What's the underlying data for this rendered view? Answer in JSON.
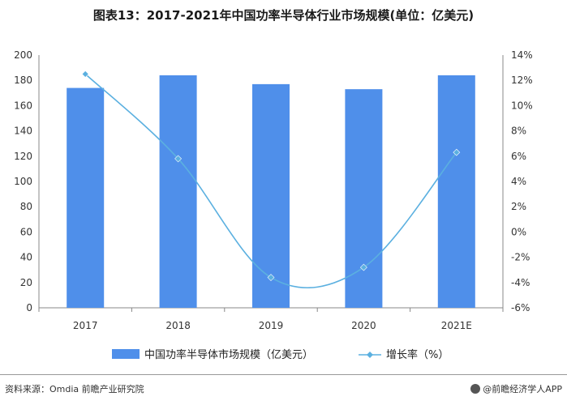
{
  "title": "图表13：2017-2021年中国功率半导体行业市场规模(单位：亿美元)",
  "chart_data": {
    "type": "bar+line",
    "categories": [
      "2017",
      "2018",
      "2019",
      "2020",
      "2021E"
    ],
    "series": [
      {
        "name": "中国功率半导体市场规模（亿美元）",
        "type": "bar",
        "axis": "left",
        "values": [
          174,
          184,
          177,
          173,
          184
        ]
      },
      {
        "name": "增长率（%）",
        "type": "line",
        "axis": "right",
        "values": [
          12.5,
          5.8,
          -3.6,
          -2.8,
          6.3
        ]
      }
    ],
    "y_left": {
      "min": 0,
      "max": 200,
      "step": 20,
      "ticks": [
        "0",
        "20",
        "40",
        "60",
        "80",
        "100",
        "120",
        "140",
        "160",
        "180",
        "200"
      ]
    },
    "y_right": {
      "min": -6,
      "max": 14,
      "step": 2,
      "ticks": [
        "-6%",
        "-4%",
        "-2%",
        "0%",
        "2%",
        "4%",
        "6%",
        "8%",
        "10%",
        "12%",
        "14%"
      ]
    },
    "legend_position": "bottom",
    "colors": {
      "bar": "#4f8fea",
      "line": "#5bb0e0"
    }
  },
  "footer": {
    "source": "资料来源：Omdia 前瞻产业研究院",
    "brand": "@前瞻经济学人APP"
  }
}
